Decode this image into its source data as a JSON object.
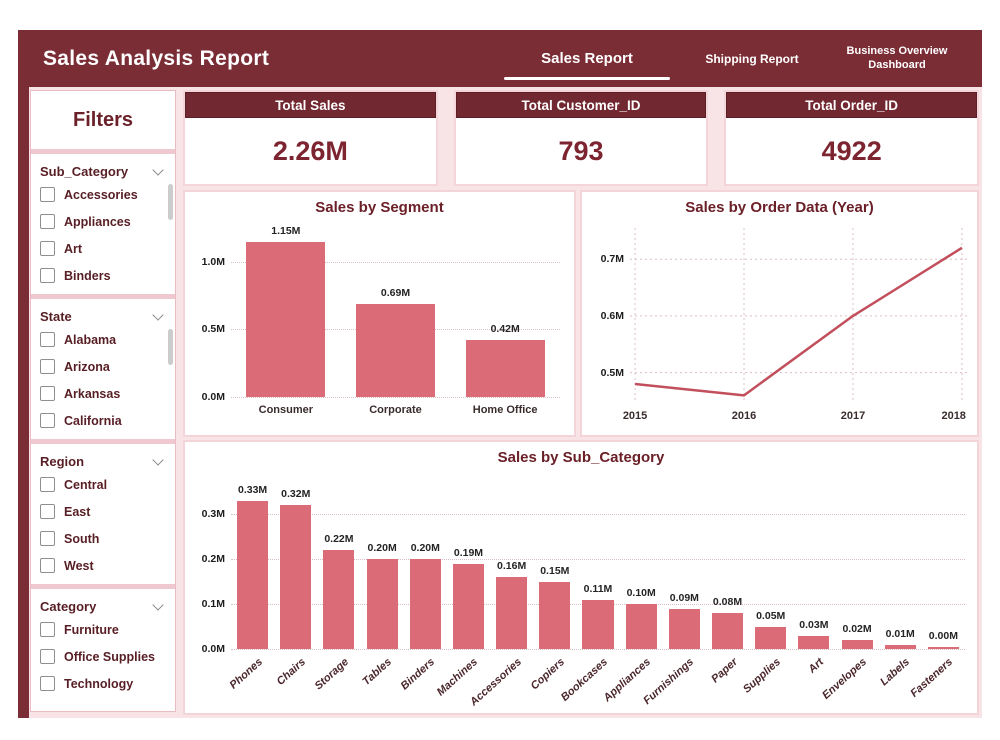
{
  "header": {
    "title": "Sales Analysis Report",
    "tabs": [
      {
        "label": "Sales Report",
        "active": true
      },
      {
        "label": "Shipping Report",
        "active": false
      },
      {
        "label": "Business Overview Dashboard",
        "active": false
      }
    ]
  },
  "filters": {
    "title": "Filters",
    "sections": [
      {
        "label": "Sub_Category",
        "scrollbar": true,
        "options": [
          "Accessories",
          "Appliances",
          "Art",
          "Binders"
        ]
      },
      {
        "label": "State",
        "scrollbar": true,
        "options": [
          "Alabama",
          "Arizona",
          "Arkansas",
          "California"
        ]
      },
      {
        "label": "Region",
        "scrollbar": false,
        "options": [
          "Central",
          "East",
          "South",
          "West"
        ]
      },
      {
        "label": "Category",
        "scrollbar": false,
        "options": [
          "Furniture",
          "Office Supplies",
          "Technology"
        ]
      }
    ]
  },
  "kpis": [
    {
      "title": "Total Sales",
      "value": "2.26M"
    },
    {
      "title": "Total Customer_ID",
      "value": "793"
    },
    {
      "title": "Total Order_ID",
      "value": "4922"
    }
  ],
  "chart_data": [
    {
      "type": "bar",
      "title": "Sales by Segment",
      "categories": [
        "Consumer",
        "Corporate",
        "Home Office"
      ],
      "values": [
        1.15,
        0.69,
        0.42
      ],
      "value_labels": [
        "1.15M",
        "0.69M",
        "0.42M"
      ],
      "ytick_values": [
        0,
        0.5,
        1.0
      ],
      "ytick_labels": [
        "0.0M",
        "0.5M",
        "1.0M"
      ],
      "ymax": 1.25,
      "ylabel": "",
      "xlabel": "",
      "grid": true,
      "rotate_xlabels": false,
      "bar_color": "#dc6b78",
      "unit": "M"
    },
    {
      "type": "line",
      "title": "Sales by Order Data (Year)",
      "x": [
        "2015",
        "2016",
        "2017",
        "2018"
      ],
      "values": [
        0.48,
        0.46,
        0.6,
        0.72
      ],
      "ylim": [
        0.45,
        0.755
      ],
      "ytick_values": [
        0.5,
        0.6,
        0.7
      ],
      "ytick_labels": [
        "0.5M",
        "0.6M",
        "0.7M"
      ],
      "grid": true,
      "line_color": "#c24f5c",
      "unit": "M"
    },
    {
      "type": "bar",
      "title": "Sales by Sub_Category",
      "categories": [
        "Phones",
        "Chairs",
        "Storage",
        "Tables",
        "Binders",
        "Machines",
        "Accessories",
        "Copiers",
        "Bookcases",
        "Appliances",
        "Furnishings",
        "Paper",
        "Supplies",
        "Art",
        "Envelopes",
        "Labels",
        "Fasteners"
      ],
      "values": [
        0.33,
        0.32,
        0.22,
        0.2,
        0.2,
        0.19,
        0.16,
        0.15,
        0.11,
        0.1,
        0.09,
        0.08,
        0.05,
        0.03,
        0.02,
        0.01,
        0.004
      ],
      "value_labels": [
        "0.33M",
        "0.32M",
        "0.22M",
        "0.20M",
        "0.20M",
        "0.19M",
        "0.16M",
        "0.15M",
        "0.11M",
        "0.10M",
        "0.09M",
        "0.08M",
        "0.05M",
        "0.03M",
        "0.02M",
        "0.01M",
        "0.00M"
      ],
      "ytick_values": [
        0,
        0.1,
        0.2,
        0.3
      ],
      "ytick_labels": [
        "0.0M",
        "0.1M",
        "0.2M",
        "0.3M"
      ],
      "ymax": 0.39,
      "grid": true,
      "rotate_xlabels": true,
      "bar_color": "#dc6b78",
      "unit": "M"
    }
  ],
  "colors": {
    "header_bg": "#7b2d35",
    "kpi_header_bg": "#722830",
    "accent_bar": "#dc6b78",
    "line": "#c24f5c",
    "page_bg": "#f8e3e6",
    "panel_border": "#f3d4d8",
    "title_text": "#6b2028",
    "value_text": "#7c2430"
  }
}
